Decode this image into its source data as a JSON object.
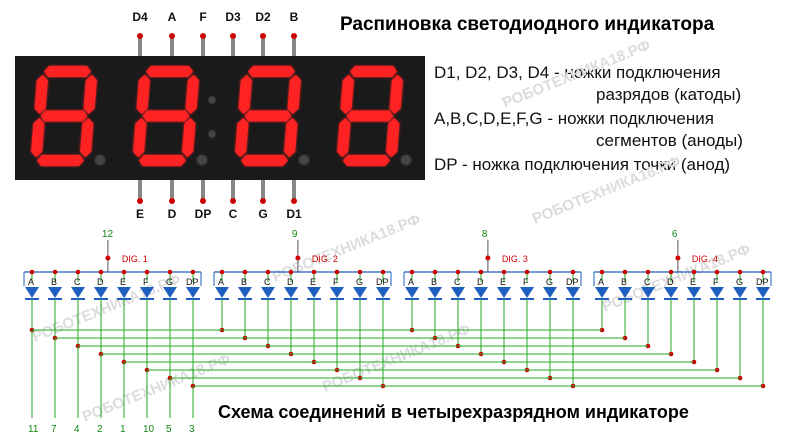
{
  "title_top": "Распиновка светодиодного индикатора",
  "title_bottom": "Схема соединений в четырехразрядном индикаторе",
  "desc": {
    "line1": "D1, D2, D3, D4 - ножки подключения",
    "line2": "разрядов (катоды)",
    "line3": "A,B,C,D,E,F,G  - ножки подключения",
    "line4": "сегментов (аноды)",
    "line5": "DP - ножка подключения точки (анод)"
  },
  "pins_top": [
    "D4",
    "A",
    "F",
    "D3",
    "D2",
    "B"
  ],
  "pins_bottom": [
    "E",
    "D",
    "DP",
    "C",
    "G",
    "D1"
  ],
  "digits": [
    {
      "label": "DIG. 1",
      "pin": "12"
    },
    {
      "label": "DIG. 2",
      "pin": "9"
    },
    {
      "label": "DIG. 3",
      "pin": "8"
    },
    {
      "label": "DIG. 4",
      "pin": "6"
    }
  ],
  "segment_labels": [
    "A",
    "B",
    "C",
    "D",
    "E",
    "F",
    "G",
    "DP"
  ],
  "bottom_pins": [
    "11",
    "7",
    "4",
    "2",
    "1",
    "10",
    "5",
    "3"
  ],
  "watermark": "РОБОТЕХНИКА18.РФ",
  "colors": {
    "display_body": "#1a1a1a",
    "segment_on": "#ff2020",
    "segment_glow": "#ff6060",
    "pin_dot": "#cc0000",
    "wire_green": "#22aa22",
    "diode_blue": "#1f5fbf"
  }
}
